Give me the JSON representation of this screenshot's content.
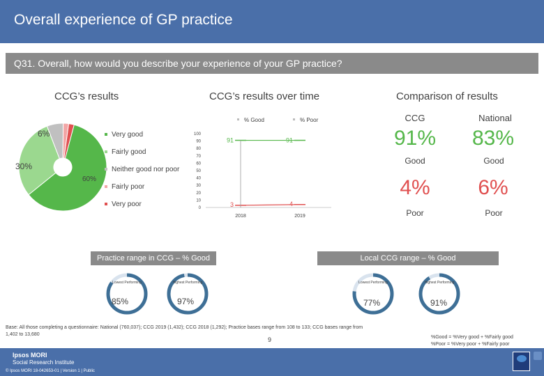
{
  "header": {
    "title": "Overall experience of GP practice"
  },
  "question": {
    "text": "Q31. Overall, how would you describe your experience of your GP practice?"
  },
  "sections": {
    "ccg_results": "CCG’s results",
    "over_time": "CCG’s results over time",
    "comparison": "Comparison of results"
  },
  "colors": {
    "very_good": "#55b74a",
    "fairly_good": "#9bd88f",
    "neither": "#c0c0c0",
    "fairly_poor": "#f2a6a6",
    "very_poor": "#e05050",
    "brand": "#4a6fa9",
    "ring": "#3e6f96"
  },
  "chart_data": [
    {
      "type": "pie",
      "variant": "donut",
      "title": "CCG’s results",
      "categories": [
        "Very good",
        "Fairly good",
        "Neither good nor poor",
        "Fairly poor",
        "Very poor"
      ],
      "values": [
        60,
        30,
        6,
        2,
        2
      ],
      "data_labels": [
        "60%",
        "30%",
        "6%",
        "",
        ""
      ]
    },
    {
      "type": "line",
      "title": "CCG’s results over time",
      "x": [
        "2018",
        "2019"
      ],
      "series": [
        {
          "name": "% Good",
          "values": [
            91,
            91
          ]
        },
        {
          "name": "% Poor",
          "values": [
            3,
            4
          ]
        }
      ],
      "ylim": [
        0,
        100
      ],
      "yticks": [
        "0",
        "10",
        "20",
        "30",
        "40",
        "50",
        "60",
        "70",
        "80",
        "90",
        "100"
      ]
    }
  ],
  "comparison": {
    "ccg_label": "CCG",
    "national_label": "National",
    "good_ccg": "91%",
    "good_national": "83%",
    "good_label": "Good",
    "poor_ccg": "4%",
    "poor_national": "6%",
    "poor_label": "Poor"
  },
  "practice_range": {
    "title": "Practice range in CCG – % Good",
    "lowest_label": "Lowest Performing",
    "highest_label": "Highest Performing",
    "lowest_value": "85%",
    "highest_value": "97%",
    "lowest_pct": 85,
    "highest_pct": 97
  },
  "local_range": {
    "title": "Local CCG range – % Good",
    "lowest_label": "Lowest Performing",
    "highest_label": "Highest Performing",
    "lowest_value": "77%",
    "highest_value": "91%",
    "lowest_pct": 77,
    "highest_pct": 91
  },
  "footer": {
    "base": "Base: All those completing a questionnaire: National (760,037); CCG 2019 (1,432); CCG 2018 (1,292); Practice bases range from 108 to 133; CCG bases range from 1,402 to 13,680",
    "def_good": "%Good = %Very good + %Fairly good",
    "def_poor": "%Poor = %Very poor + %Fairly poor",
    "page": "9",
    "org1": "Ipsos MORI",
    "org2": "Social Research Institute",
    "copyright": "© Ipsos MORI     18-042653-01 | Version 1 | Public"
  }
}
